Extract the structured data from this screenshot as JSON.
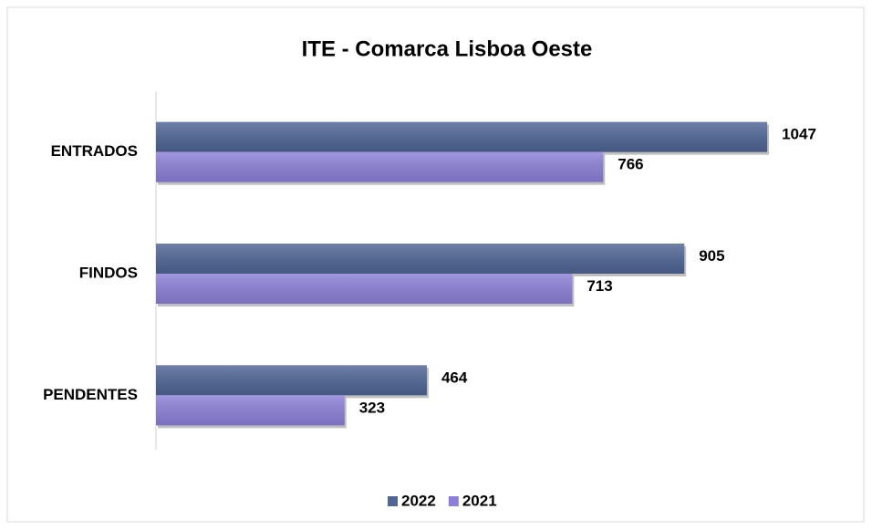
{
  "chart_data": {
    "type": "bar",
    "orientation": "horizontal",
    "title": "ITE - Comarca Lisboa Oeste",
    "categories": [
      "ENTRADOS",
      "FINDOS",
      "PENDENTES"
    ],
    "series": [
      {
        "name": "2022",
        "color": "#4f6595",
        "values": [
          1047,
          905,
          464
        ]
      },
      {
        "name": "2021",
        "color": "#8c80d8",
        "values": [
          766,
          713,
          323
        ]
      }
    ],
    "xlim": [
      0,
      1200
    ],
    "legend": "bottom"
  }
}
